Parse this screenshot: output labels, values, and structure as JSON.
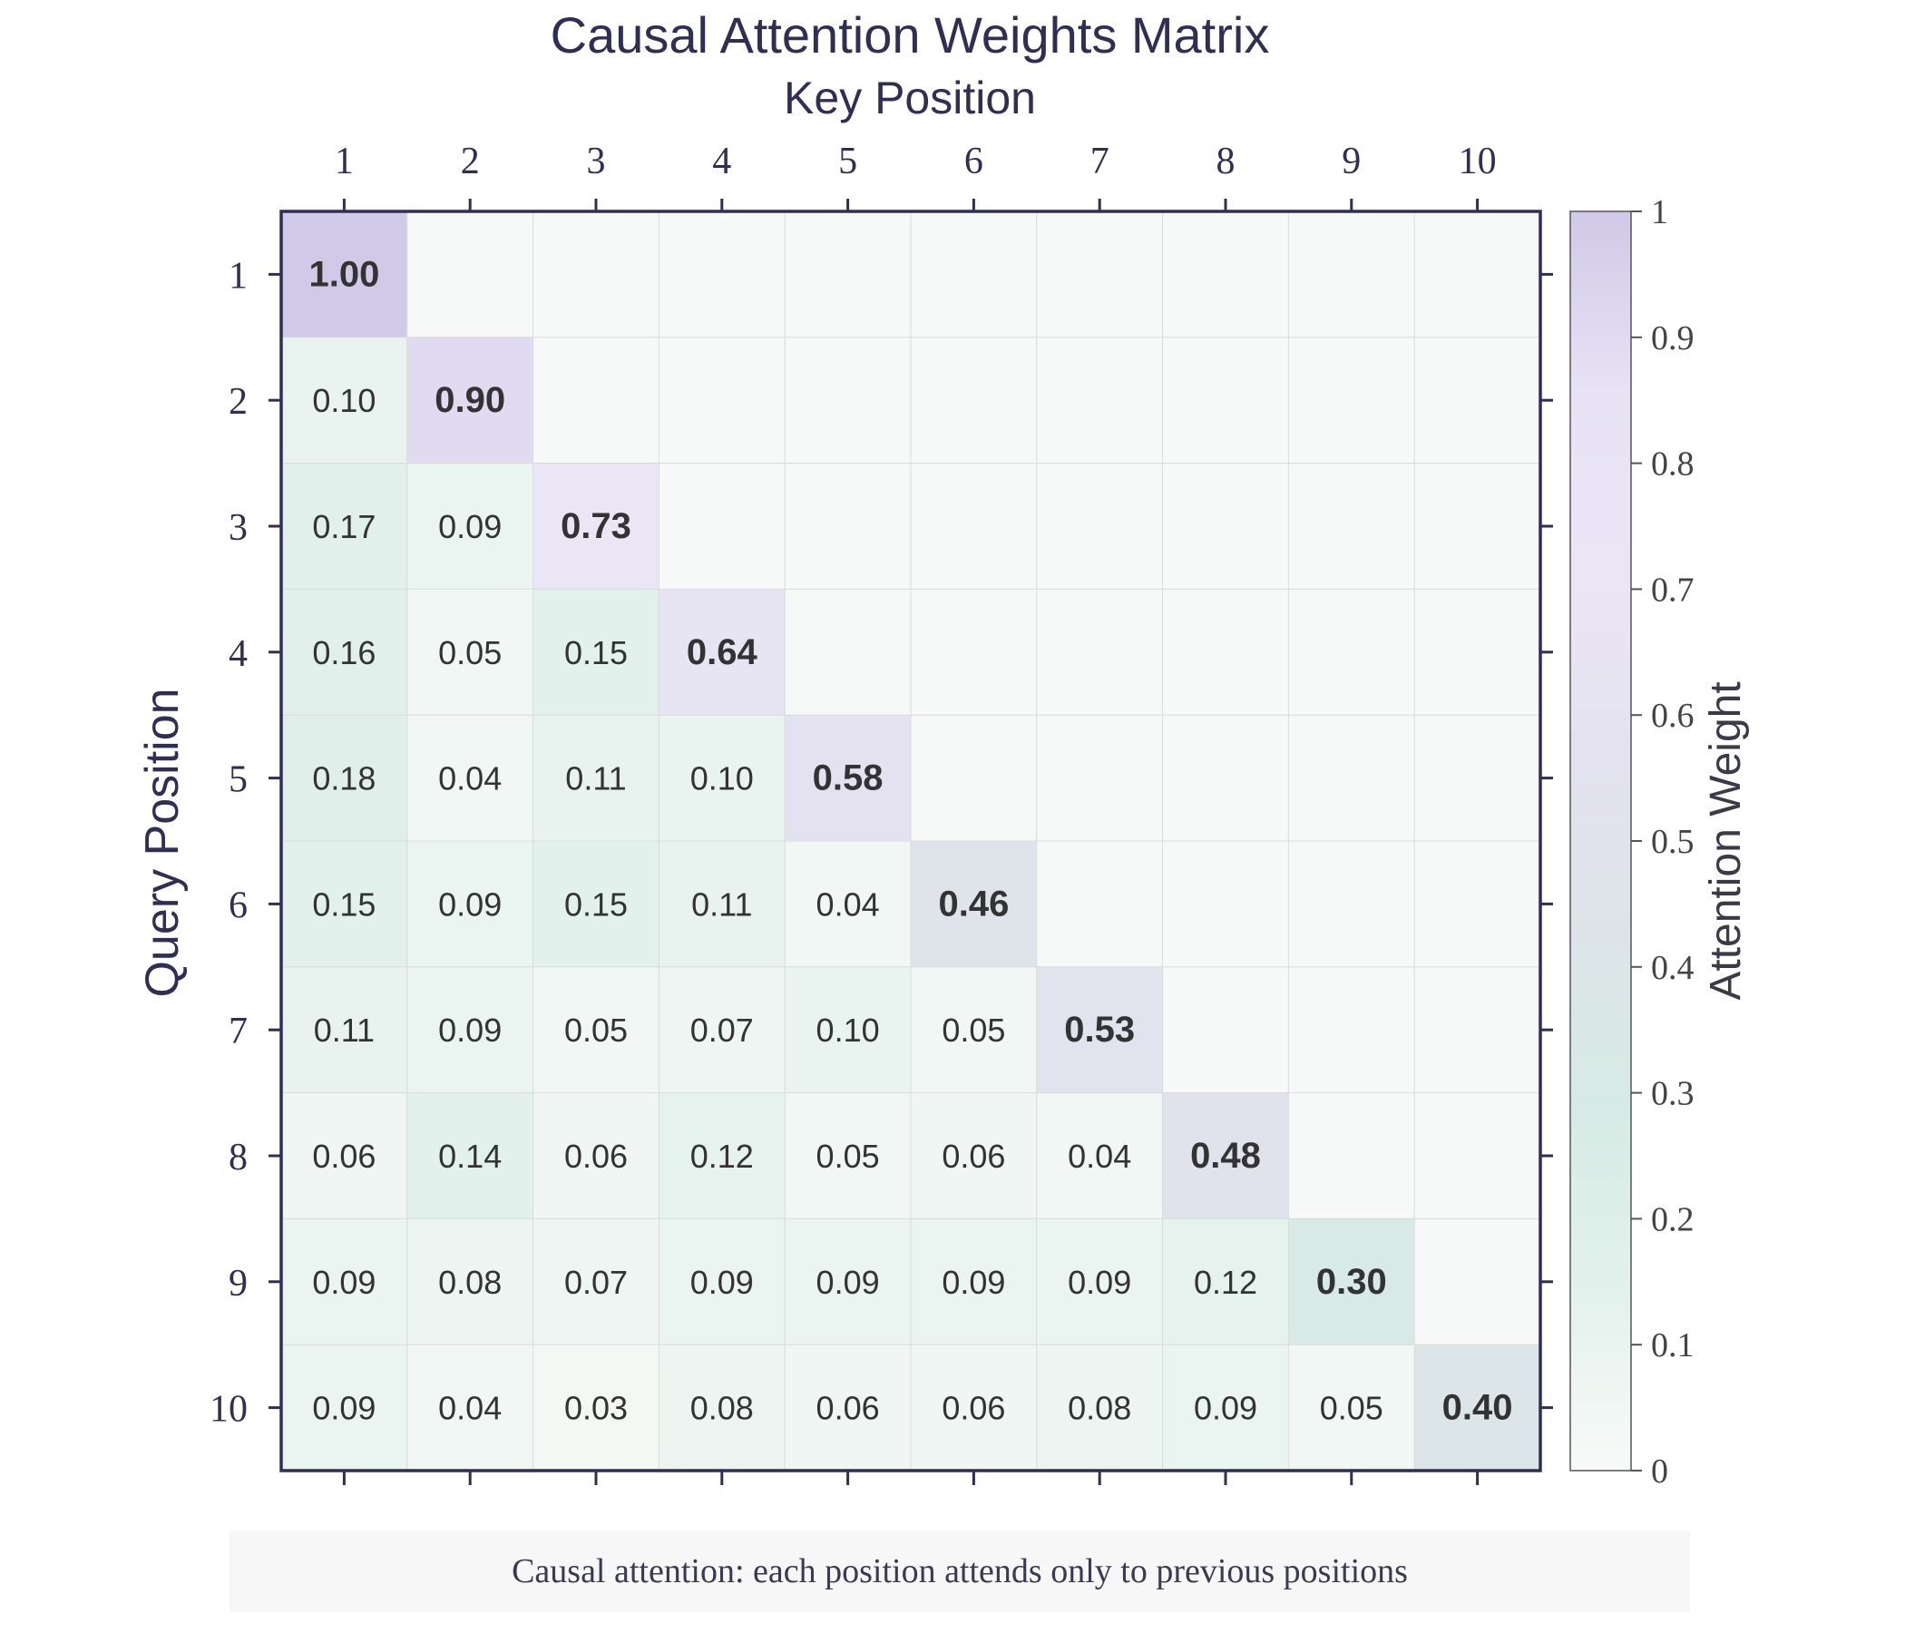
{
  "chart_data": {
    "type": "heatmap",
    "title": "Causal Attention Weights Matrix",
    "xlabel": "Key Position",
    "ylabel": "Query Position",
    "x_categories": [
      "1",
      "2",
      "3",
      "4",
      "5",
      "6",
      "7",
      "8",
      "9",
      "10"
    ],
    "y_categories": [
      "1",
      "2",
      "3",
      "4",
      "5",
      "6",
      "7",
      "8",
      "9",
      "10"
    ],
    "values": [
      [
        1.0,
        null,
        null,
        null,
        null,
        null,
        null,
        null,
        null,
        null
      ],
      [
        0.1,
        0.9,
        null,
        null,
        null,
        null,
        null,
        null,
        null,
        null
      ],
      [
        0.17,
        0.09,
        0.73,
        null,
        null,
        null,
        null,
        null,
        null,
        null
      ],
      [
        0.16,
        0.05,
        0.15,
        0.64,
        null,
        null,
        null,
        null,
        null,
        null
      ],
      [
        0.18,
        0.04,
        0.11,
        0.1,
        0.58,
        null,
        null,
        null,
        null,
        null
      ],
      [
        0.15,
        0.09,
        0.15,
        0.11,
        0.04,
        0.46,
        null,
        null,
        null,
        null
      ],
      [
        0.11,
        0.09,
        0.05,
        0.07,
        0.1,
        0.05,
        0.53,
        null,
        null,
        null
      ],
      [
        0.06,
        0.14,
        0.06,
        0.12,
        0.05,
        0.06,
        0.04,
        0.48,
        null,
        null
      ],
      [
        0.09,
        0.08,
        0.07,
        0.09,
        0.09,
        0.09,
        0.09,
        0.12,
        0.3,
        null
      ],
      [
        0.09,
        0.04,
        0.03,
        0.08,
        0.06,
        0.06,
        0.08,
        0.09,
        0.05,
        0.4
      ]
    ],
    "colorbar": {
      "label": "Attention Weight",
      "range": [
        0,
        1
      ],
      "ticks": [
        0,
        0.1,
        0.2,
        0.3,
        0.4,
        0.5,
        0.6,
        0.7,
        0.8,
        0.9,
        1
      ],
      "tick_labels": [
        "0",
        "0.1",
        "0.2",
        "0.3",
        "0.4",
        "0.5",
        "0.6",
        "0.7",
        "0.8",
        "0.9",
        "1"
      ],
      "colors": [
        "#f7faf8",
        "#e3f1ec",
        "#d6ebe5",
        "#dde4e8",
        "#e4e2f0",
        "#ebe6f6",
        "#e8e2f5",
        "#d0c9e7"
      ]
    },
    "masked_color": "#f7f9f8",
    "grid": true,
    "diagonal_bold": true
  },
  "caption": "Causal attention: each position attends only to previous positions"
}
